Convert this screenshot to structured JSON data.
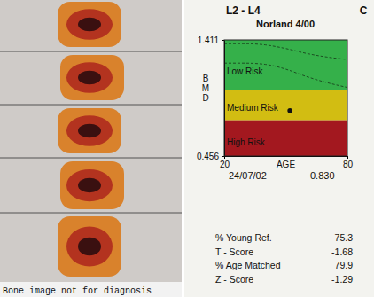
{
  "chart_data": {
    "type": "line",
    "title": "L2 - L4",
    "corner_label": "C",
    "subtitle": "Norland 4/00",
    "y_label": "BMD",
    "x_label": "AGE",
    "xlim": [
      20,
      80
    ],
    "xticks": [
      20,
      80
    ],
    "ylim": [
      0.456,
      1.411
    ],
    "yticks": [
      0.456,
      1.411
    ],
    "zones": [
      {
        "label": "Low Risk",
        "from": 1.0,
        "to": 1.411,
        "color": "#35b04a"
      },
      {
        "label": "Medium Risk",
        "from": 0.75,
        "to": 1.0,
        "color": "#d2bd12"
      },
      {
        "label": "High Risk",
        "from": 0.456,
        "to": 0.75,
        "color": "#a3181f"
      }
    ],
    "series": [
      {
        "type": "line",
        "line_style": "dashed",
        "color": "#1c4f22",
        "x": [
          20,
          30,
          40,
          50,
          60,
          70,
          80
        ],
        "values": [
          1.38,
          1.38,
          1.37,
          1.34,
          1.3,
          1.27,
          1.25
        ]
      },
      {
        "type": "line",
        "line_style": "dashed",
        "color": "#1c4f22",
        "x": [
          20,
          30,
          40,
          50,
          60,
          70,
          80
        ],
        "values": [
          1.22,
          1.22,
          1.21,
          1.17,
          1.11,
          1.06,
          1.02
        ]
      },
      {
        "type": "scatter",
        "marker": "circle",
        "color": "#111111",
        "x": [
          52
        ],
        "values": [
          0.83
        ]
      }
    ],
    "date": "24/07/02",
    "bmd_label": "0.830",
    "results": [
      {
        "label": "% Young Ref.",
        "value": 75.3
      },
      {
        "label": "T - Score",
        "value": -1.68
      },
      {
        "label": "% Age Matched",
        "value": 79.9
      },
      {
        "label": "Z - Score",
        "value": -1.29
      }
    ],
    "image_caption": "Bone image not for diagnosis"
  }
}
